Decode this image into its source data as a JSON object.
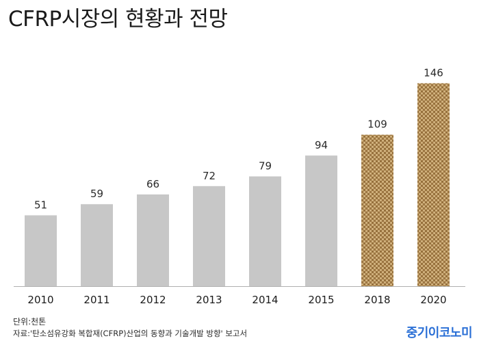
{
  "title": "CFRP시장의 현황과 전망",
  "unit_note": "단위:천톤",
  "source_note": "자료:'탄소섬유강화 복합재(CFRP)산업의 동향과 기술개발 방향' 보고서",
  "brand": "중기이코노미",
  "colors": {
    "actual_bar": "#c7c7c7",
    "forecast_bar": "#b08b55",
    "brand": "#2a6fd6",
    "axis": "#b0b0b0"
  },
  "chart_data": {
    "type": "bar",
    "title": "CFRP시장의 현황과 전망",
    "categories": [
      "2010",
      "2011",
      "2012",
      "2013",
      "2014",
      "2015",
      "2018",
      "2020"
    ],
    "values": [
      51,
      59,
      66,
      72,
      79,
      94,
      109,
      146
    ],
    "forecast": [
      false,
      false,
      false,
      false,
      false,
      false,
      true,
      true
    ],
    "xlabel": "",
    "ylabel": "",
    "ylim": [
      0,
      150
    ],
    "grid": false,
    "legend": "none"
  }
}
